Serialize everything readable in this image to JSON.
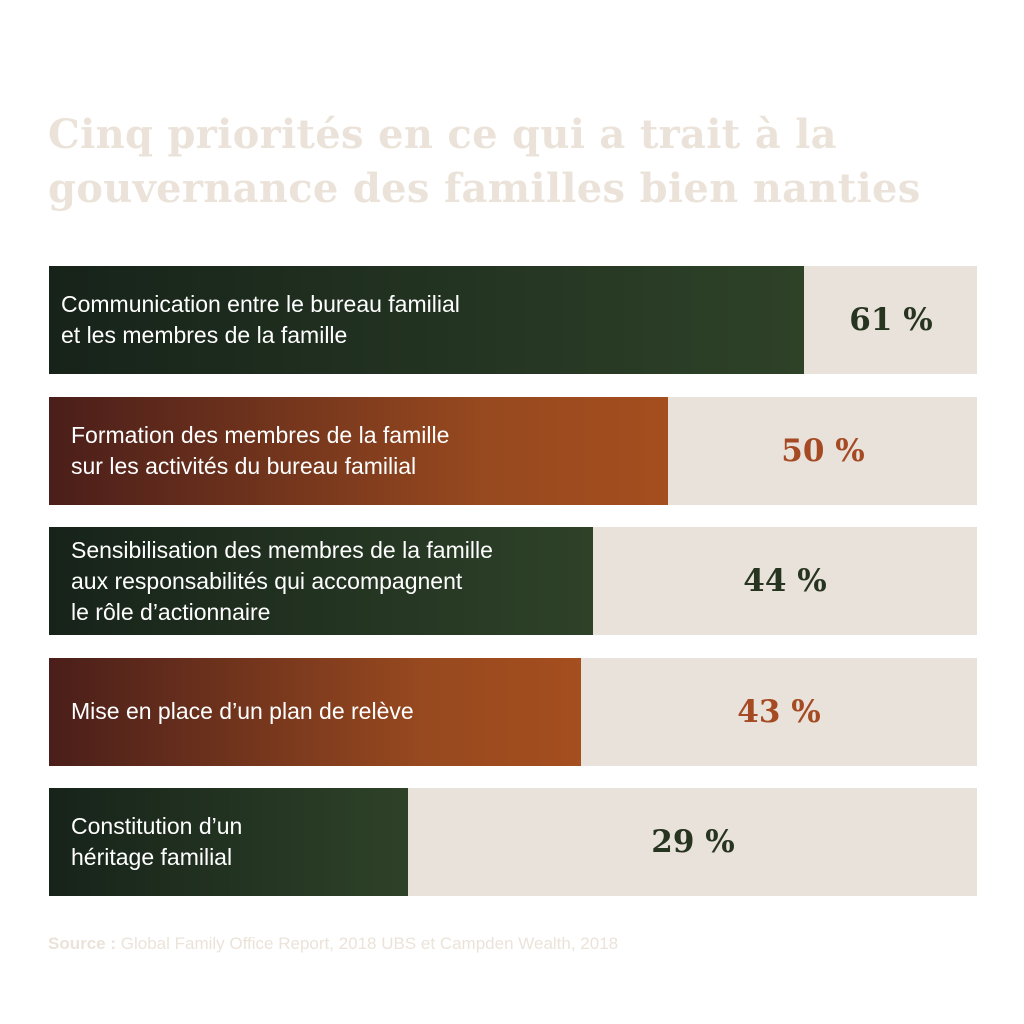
{
  "title": {
    "line1": "Cinq priorités en ce qui a trait à la",
    "line2": "gouvernance des familles bien nanties"
  },
  "chart_data": {
    "type": "bar",
    "orientation": "horizontal",
    "categories": [
      [
        "Communication entre le bureau familial",
        "et les membres de la famille"
      ],
      [
        "Formation des membres de la famille",
        "sur les activités du bureau familial"
      ],
      [
        "Sensibilisation des membres de la famille",
        "aux responsabilités qui accompagnent",
        "le rôle d’actionnaire"
      ],
      [
        "Mise en place d’un plan de relève"
      ],
      [
        "Constitution d’un",
        "héritage familial"
      ]
    ],
    "values": [
      61,
      50,
      44,
      43,
      29
    ],
    "value_labels": [
      "61 %",
      "50 %",
      "44 %",
      "43 %",
      "29 %"
    ],
    "xlim": [
      0,
      75
    ],
    "colors": [
      "#2e4228",
      "#a54e1f",
      "#2e4228",
      "#a54e1f",
      "#2e4228"
    ]
  },
  "source": {
    "prefix": "Source :",
    "text": "Global Family Office Report, 2018 UBS et Campden Wealth, 2018"
  }
}
